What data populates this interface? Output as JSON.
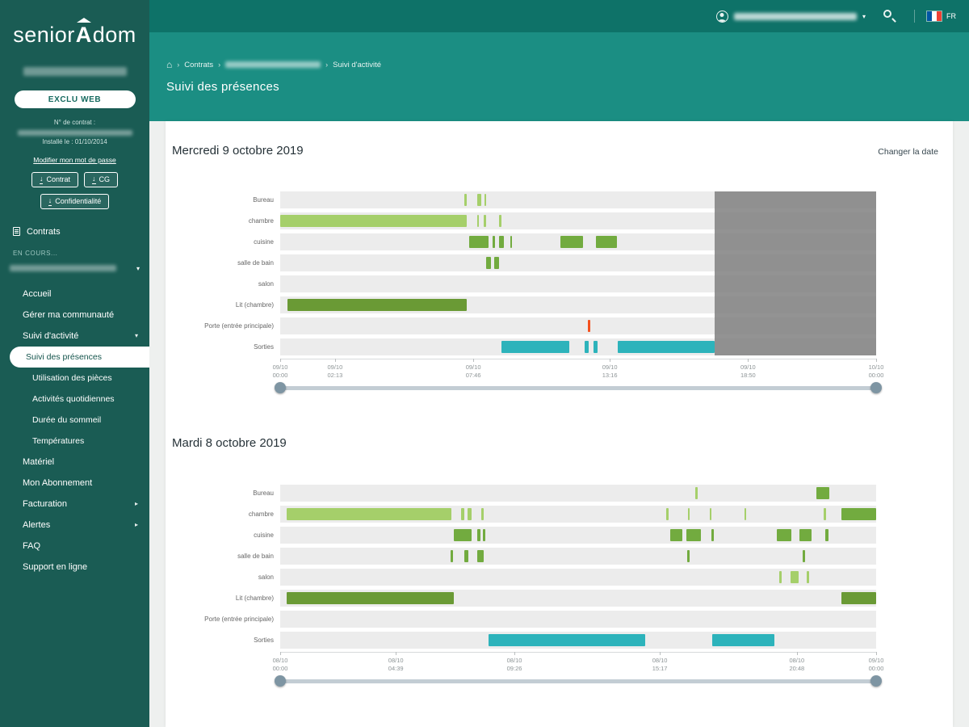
{
  "brand": {
    "pre": "senior",
    "a": "A",
    "post": "dom"
  },
  "sidebar": {
    "exclu_web": "EXCLU WEB",
    "contract_label": "N° de contrat :",
    "installed": "Installé le : 01/10/2014",
    "change_password": "Modifier mon mot de passe",
    "buttons": {
      "contrat": "Contrat",
      "cg": "CG",
      "confidentialite": "Confidentialité"
    },
    "contrats": "Contrats",
    "en_cours": "EN COURS...",
    "menu": [
      {
        "label": "Accueil"
      },
      {
        "label": "Gérer ma communauté"
      },
      {
        "label": "Suivi d'activité",
        "chevron": "down"
      },
      {
        "label": "Suivi des présences",
        "active": true,
        "sub": true
      },
      {
        "label": "Utilisation des pièces",
        "sub": true
      },
      {
        "label": "Activités quotidiennes",
        "sub": true
      },
      {
        "label": "Durée du sommeil",
        "sub": true
      },
      {
        "label": "Températures",
        "sub": true
      },
      {
        "label": "Matériel"
      },
      {
        "label": "Mon Abonnement"
      },
      {
        "label": "Facturation",
        "chevron": "right"
      },
      {
        "label": "Alertes",
        "chevron": "right"
      },
      {
        "label": "FAQ"
      },
      {
        "label": "Support en ligne"
      }
    ]
  },
  "topbar": {
    "lang": "FR"
  },
  "breadcrumb": {
    "items": [
      "Contrats",
      "Suivi d'activité"
    ]
  },
  "page_title": "Suivi des présences",
  "card": {
    "change_date": "Changer la date"
  },
  "chart_colors": {
    "light": "#a5cf6a",
    "green": "#72ab3f",
    "dark": "#6a9a35",
    "teal": "#2db3bb",
    "orange": "#f4511e"
  },
  "chart_data": [
    {
      "type": "timeline",
      "title": "Mercredi 9 octobre 2019",
      "x_domain_hours": [
        0,
        24
      ],
      "rows": [
        "Bureau",
        "chambre",
        "cuisine",
        "salle de bain",
        "salon",
        "Lit (chambre)",
        "Porte (entrée principale)",
        "Sorties"
      ],
      "bars": [
        [
          0,
          7.4,
          7.52,
          "light"
        ],
        [
          0,
          7.95,
          8.1,
          "light"
        ],
        [
          0,
          8.22,
          8.3,
          "light"
        ],
        [
          1,
          0.0,
          7.5,
          "light"
        ],
        [
          1,
          7.92,
          8.0,
          "light"
        ],
        [
          1,
          8.2,
          8.28,
          "light"
        ],
        [
          1,
          8.82,
          8.9,
          "light"
        ],
        [
          2,
          7.6,
          8.4,
          "green"
        ],
        [
          2,
          8.55,
          8.65,
          "green"
        ],
        [
          2,
          8.8,
          9.0,
          "green"
        ],
        [
          2,
          9.28,
          9.34,
          "green"
        ],
        [
          2,
          11.3,
          12.2,
          "green"
        ],
        [
          2,
          12.7,
          13.55,
          "green"
        ],
        [
          3,
          8.3,
          8.5,
          "green"
        ],
        [
          3,
          8.62,
          8.8,
          "green"
        ],
        [
          5,
          0.3,
          7.5,
          "dark"
        ],
        [
          6,
          12.38,
          12.48,
          "orange"
        ],
        [
          7,
          8.9,
          11.65,
          "teal"
        ],
        [
          7,
          12.25,
          12.42,
          "teal"
        ],
        [
          7,
          12.62,
          12.78,
          "teal"
        ],
        [
          7,
          13.6,
          17.5,
          "teal"
        ]
      ],
      "future_overlay": [
        17.5,
        24
      ],
      "ticks": [
        [
          0.0,
          "09/10",
          "00:00"
        ],
        [
          0.092,
          "09/10",
          "02:13"
        ],
        [
          0.324,
          "09/10",
          "07:46"
        ],
        [
          0.553,
          "09/10",
          "13:16"
        ],
        [
          0.785,
          "09/10",
          "18:50"
        ],
        [
          1.0,
          "10/10",
          "00:00"
        ]
      ],
      "slider": [
        0,
        1
      ]
    },
    {
      "type": "timeline",
      "title": "Mardi 8 octobre 2019",
      "x_domain_hours": [
        0,
        24
      ],
      "rows": [
        "Bureau",
        "chambre",
        "cuisine",
        "salle de bain",
        "salon",
        "Lit (chambre)",
        "Porte (entrée principale)",
        "Sorties"
      ],
      "bars": [
        [
          0,
          16.7,
          16.8,
          "light"
        ],
        [
          0,
          21.6,
          22.1,
          "green"
        ],
        [
          1,
          0.25,
          6.9,
          "light"
        ],
        [
          1,
          7.3,
          7.4,
          "light"
        ],
        [
          1,
          7.55,
          7.72,
          "light"
        ],
        [
          1,
          8.1,
          8.2,
          "light"
        ],
        [
          1,
          15.55,
          15.63,
          "light"
        ],
        [
          1,
          16.42,
          16.5,
          "light"
        ],
        [
          1,
          17.3,
          17.38,
          "light"
        ],
        [
          1,
          18.7,
          18.78,
          "light"
        ],
        [
          1,
          21.9,
          21.98,
          "light"
        ],
        [
          1,
          22.6,
          24.0,
          "green"
        ],
        [
          2,
          7.0,
          7.7,
          "green"
        ],
        [
          2,
          7.95,
          8.05,
          "green"
        ],
        [
          2,
          8.15,
          8.25,
          "green"
        ],
        [
          2,
          15.7,
          16.2,
          "green"
        ],
        [
          2,
          16.35,
          16.95,
          "green"
        ],
        [
          2,
          17.35,
          17.45,
          "green"
        ],
        [
          2,
          20.0,
          20.6,
          "green"
        ],
        [
          2,
          20.9,
          21.4,
          "green"
        ],
        [
          2,
          21.95,
          22.08,
          "green"
        ],
        [
          3,
          6.85,
          6.95,
          "green"
        ],
        [
          3,
          7.4,
          7.58,
          "green"
        ],
        [
          3,
          7.95,
          8.18,
          "green"
        ],
        [
          3,
          16.4,
          16.5,
          "green"
        ],
        [
          3,
          21.05,
          21.15,
          "green"
        ],
        [
          4,
          20.1,
          20.2,
          "light"
        ],
        [
          4,
          20.55,
          20.88,
          "light"
        ],
        [
          4,
          21.2,
          21.3,
          "light"
        ],
        [
          5,
          0.25,
          7.0,
          "dark"
        ],
        [
          5,
          22.6,
          24.0,
          "dark"
        ],
        [
          7,
          8.4,
          14.7,
          "teal"
        ],
        [
          7,
          17.4,
          19.9,
          "teal"
        ]
      ],
      "future_overlay": null,
      "ticks": [
        [
          0.0,
          "08/10",
          "00:00"
        ],
        [
          0.194,
          "08/10",
          "04:39"
        ],
        [
          0.393,
          "08/10",
          "09:26"
        ],
        [
          0.637,
          "08/10",
          "15:17"
        ],
        [
          0.867,
          "08/10",
          "20:48"
        ],
        [
          1.0,
          "09/10",
          "00:00"
        ]
      ],
      "slider": [
        0,
        1
      ]
    }
  ]
}
